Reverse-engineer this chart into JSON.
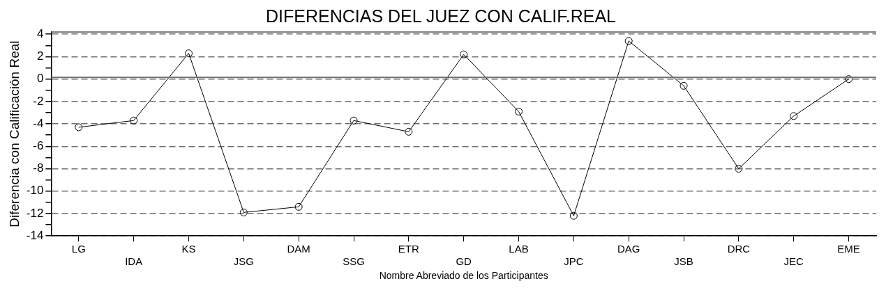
{
  "chart_data": {
    "type": "line",
    "title": "DIFERENCIAS DEL JUEZ CON CALIF.REAL",
    "xlabel": "Nombre Abreviado de los Participantes",
    "ylabel": "Diferencia con Calificación Real",
    "categories": [
      "LG",
      "IDA",
      "KS",
      "JSG",
      "DAM",
      "SSG",
      "ETR",
      "GD",
      "LAB",
      "JPC",
      "DAG",
      "JSB",
      "DRC",
      "JEC",
      "EME"
    ],
    "series": [
      {
        "color": "#000000",
        "values": [
          -4.3,
          -3.7,
          2.3,
          -11.9,
          -11.4,
          -3.7,
          -4.7,
          2.2,
          -2.9,
          -12.2,
          3.4,
          -0.6,
          -8.0,
          -3.3,
          0.0
        ]
      }
    ],
    "ylim": [
      -14,
      4.2
    ],
    "yticks": [
      -14,
      {
        "value": -13,
        "label": null
      },
      -12,
      {
        "value": -11,
        "label": null
      },
      -10,
      {
        "value": -9,
        "label": null
      },
      -8,
      {
        "value": -7,
        "label": null
      },
      -6,
      {
        "value": -5,
        "label": null
      },
      -4,
      {
        "value": -3,
        "label": null
      },
      -2,
      {
        "value": -1,
        "label": null
      },
      0,
      {
        "value": 1,
        "label": null
      },
      2,
      {
        "value": 3,
        "label": null
      },
      4
    ],
    "ref_lines": [
      {
        "axis": "y",
        "value": 0.15,
        "color": "#707070"
      }
    ],
    "grid": "y",
    "legend": false,
    "marker": "circle",
    "line_style": "solid"
  }
}
